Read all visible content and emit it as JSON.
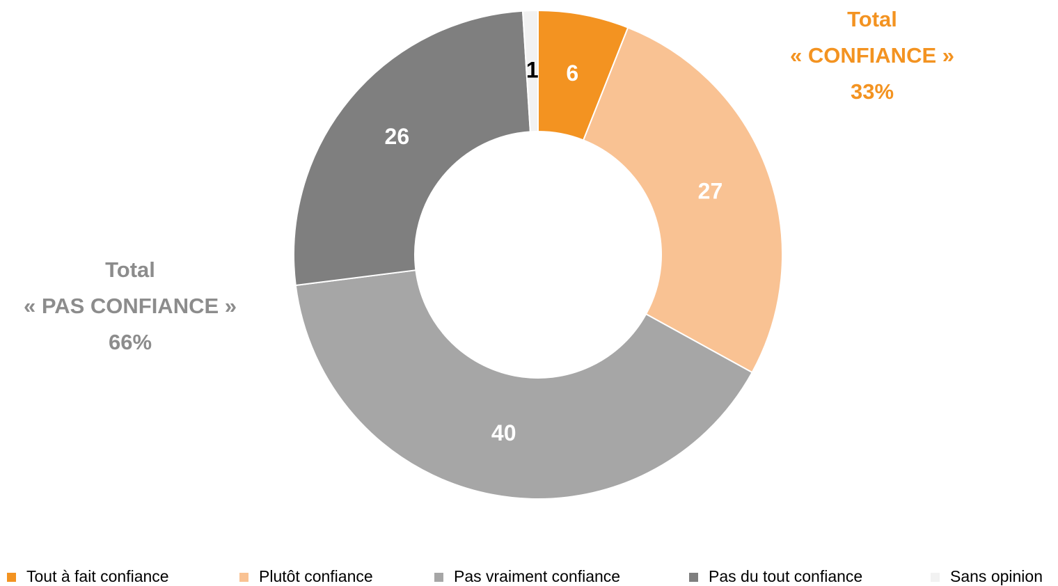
{
  "chart_data": {
    "type": "donut",
    "categories": [
      "Tout à fait confiance",
      "Plutôt confiance",
      "Pas vraiment confiance",
      "Pas du tout confiance",
      "Sans opinion"
    ],
    "values": [
      6,
      27,
      40,
      26,
      1
    ],
    "colors": [
      "#f39321",
      "#f9c293",
      "#a6a6a6",
      "#7f7f7f",
      "#f2f2f2"
    ],
    "label_colors": [
      "#ffffff",
      "#ffffff",
      "#ffffff",
      "#ffffff",
      "#000000"
    ],
    "legend": "bottom",
    "annotations": [
      {
        "lines": [
          "Total",
          "« CONFIANCE »",
          "33%"
        ],
        "color": "#f39321"
      },
      {
        "lines": [
          "Total",
          "« PAS CONFIANCE »",
          "66%"
        ],
        "color": "#8c8c8c"
      }
    ]
  }
}
